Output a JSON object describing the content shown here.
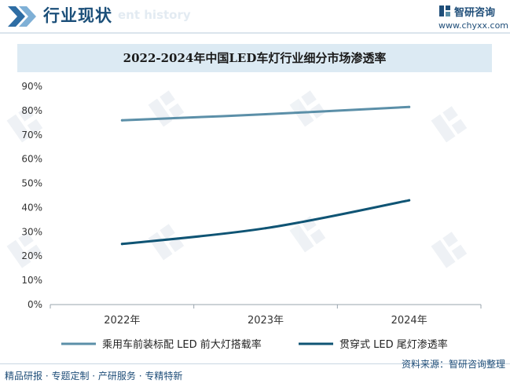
{
  "header": {
    "title": "行业现状",
    "bg_text": "ent history"
  },
  "logo": {
    "name": "智研咨询",
    "url": "www.chyxx.com"
  },
  "chart_data": {
    "type": "line",
    "title": "2022-2024年中国LED车灯行业细分市场渗透率",
    "categories": [
      "2022年",
      "2023年",
      "2024年"
    ],
    "ylim": [
      0,
      90
    ],
    "yticks": [
      "0%",
      "10%",
      "20%",
      "30%",
      "40%",
      "50%",
      "60%",
      "70%",
      "80%",
      "90%"
    ],
    "grid": false,
    "legend_position": "bottom",
    "series": [
      {
        "name": "乘用车前装标配 LED 前大灯搭载率",
        "values": [
          76,
          78.5,
          81.5
        ],
        "color": "#5b8fa8"
      },
      {
        "name": "贯穿式 LED 尾灯渗透率",
        "values": [
          25,
          31.5,
          43
        ],
        "color": "#0f5474"
      }
    ]
  },
  "footer": {
    "left": "精品研报 · 专题定制 · 产研服务 · 专精特新",
    "source": "资料来源：智研咨询整理"
  },
  "colors": {
    "header_blue": "#1b4f79",
    "title_bar": "#dceaf3",
    "axis": "#9aa5ae"
  },
  "watermark": "智研咨询"
}
